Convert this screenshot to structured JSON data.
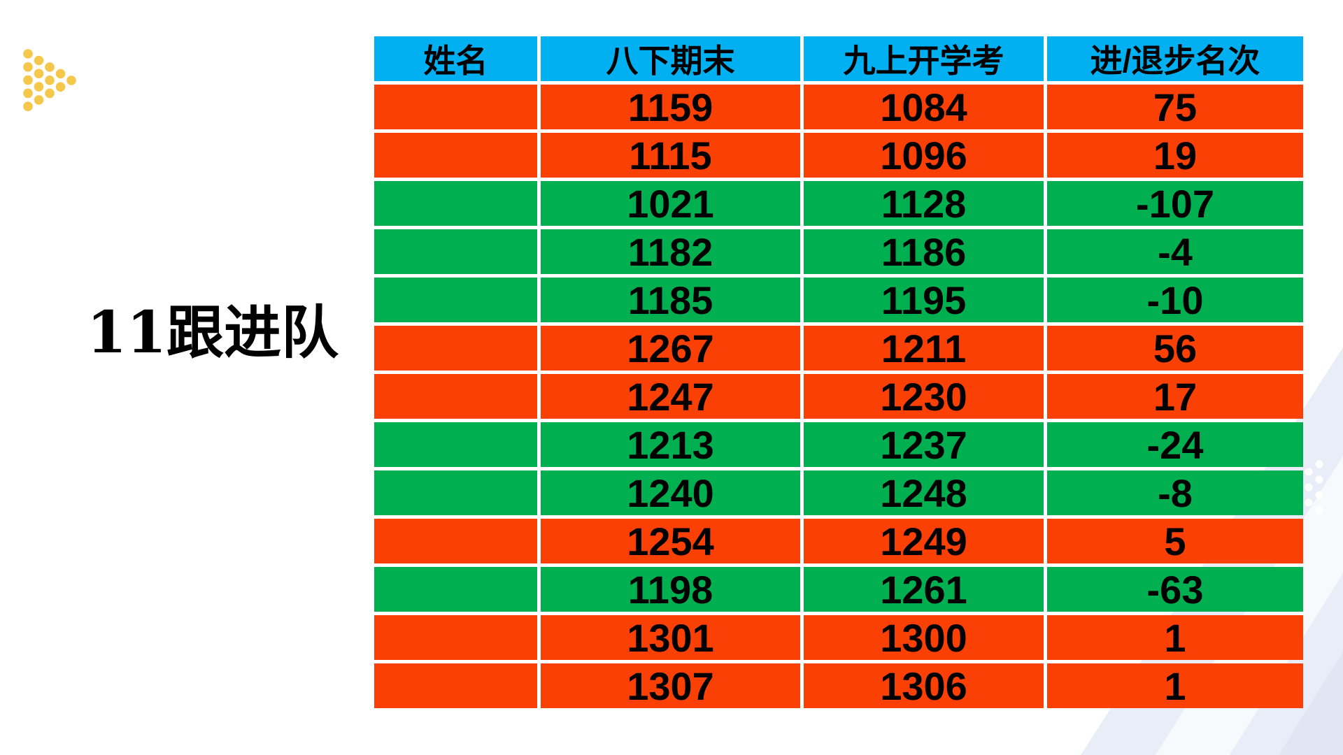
{
  "slide_title": "11跟进队",
  "table": {
    "headers": [
      "姓名",
      "八下期末",
      "九上开学考",
      "进/退步名次"
    ],
    "column_keys": [
      "name",
      "final_g8",
      "start_g9",
      "rank_change"
    ],
    "rows": [
      {
        "name": "",
        "final_g8": "1159",
        "start_g9": "1084",
        "rank_change": "75",
        "highlight": "red"
      },
      {
        "name": "",
        "final_g8": "1115",
        "start_g9": "1096",
        "rank_change": "19",
        "highlight": "red"
      },
      {
        "name": "",
        "final_g8": "1021",
        "start_g9": "1128",
        "rank_change": "-107",
        "highlight": "green"
      },
      {
        "name": "",
        "final_g8": "1182",
        "start_g9": "1186",
        "rank_change": "-4",
        "highlight": "green"
      },
      {
        "name": "",
        "final_g8": "1185",
        "start_g9": "1195",
        "rank_change": "-10",
        "highlight": "green"
      },
      {
        "name": "",
        "final_g8": "1267",
        "start_g9": "1211",
        "rank_change": "56",
        "highlight": "red"
      },
      {
        "name": "",
        "final_g8": "1247",
        "start_g9": "1230",
        "rank_change": "17",
        "highlight": "red"
      },
      {
        "name": "",
        "final_g8": "1213",
        "start_g9": "1237",
        "rank_change": "-24",
        "highlight": "green"
      },
      {
        "name": "",
        "final_g8": "1240",
        "start_g9": "1248",
        "rank_change": "-8",
        "highlight": "green"
      },
      {
        "name": "",
        "final_g8": "1254",
        "start_g9": "1249",
        "rank_change": "5",
        "highlight": "red"
      },
      {
        "name": "",
        "final_g8": "1198",
        "start_g9": "1261",
        "rank_change": "-63",
        "highlight": "green"
      },
      {
        "name": "",
        "final_g8": "1301",
        "start_g9": "1300",
        "rank_change": "1",
        "highlight": "red"
      },
      {
        "name": "",
        "final_g8": "1307",
        "start_g9": "1306",
        "rank_change": "1",
        "highlight": "red"
      }
    ]
  },
  "colors": {
    "header_bg": "#00B0F0",
    "advance_bg": "#FA4005",
    "decline_bg": "#00B050",
    "grid_line": "#FFFFFF",
    "text": "#000000",
    "accent_dots_yellow": "#F5C74A",
    "corner_shape": "#E9EDF7",
    "corner_stripe": "#FFFFFF",
    "corner_dots_white": "#FFFFFF"
  }
}
